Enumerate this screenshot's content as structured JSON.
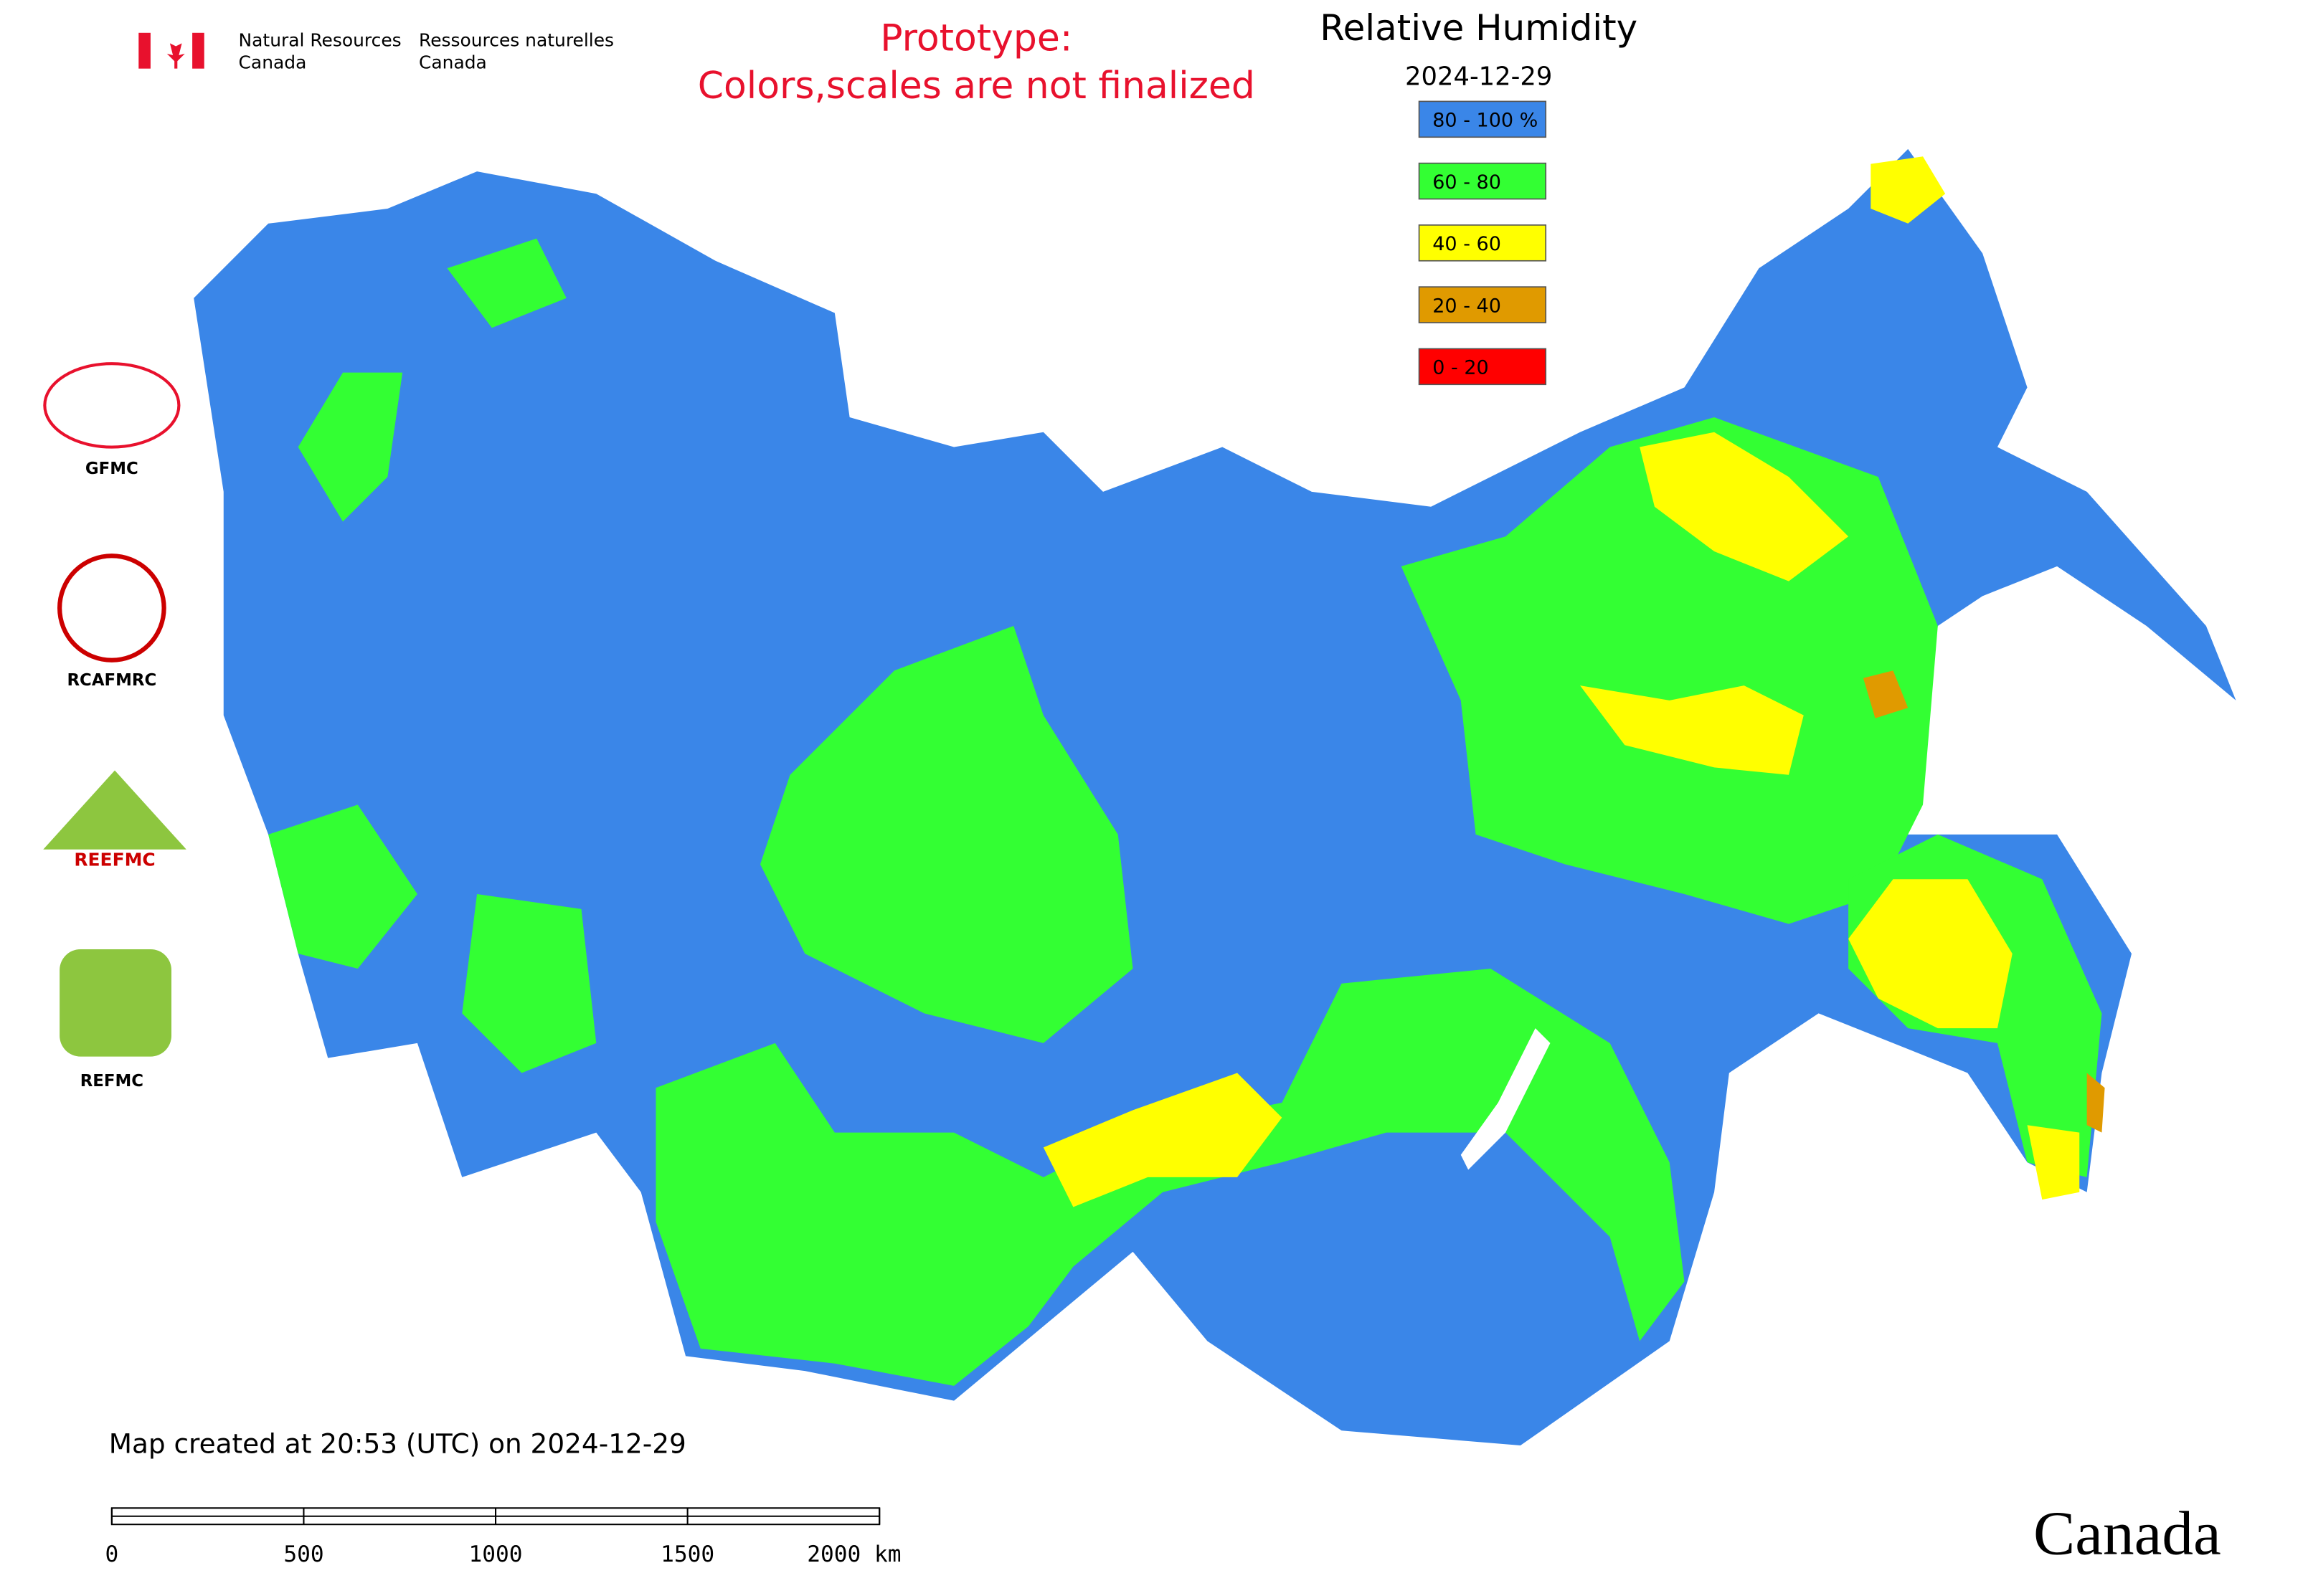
{
  "header": {
    "agency_en": [
      "Natural Resources",
      "Canada"
    ],
    "agency_fr": [
      "Ressources naturelles",
      "Canada"
    ],
    "notice": [
      "Prototype:",
      "Colors,scales are not finalized"
    ]
  },
  "legend": {
    "title": "Relative Humidity",
    "date": "2024-12-29",
    "items": [
      {
        "label": "80 - 100 %",
        "color": "#3a86e8"
      },
      {
        "label": "60 - 80",
        "color": "#33ff33"
      },
      {
        "label": "40 - 60",
        "color": "#ffff00"
      },
      {
        "label": "20 - 40",
        "color": "#e09a00"
      },
      {
        "label": "0 - 20",
        "color": "#ff0000"
      }
    ]
  },
  "logos": [
    "GFMC",
    "RCAFMRC",
    "REEFMC",
    "REFMC"
  ],
  "footer": {
    "created": "Map created at 20:53 (UTC) on 2024-12-29",
    "scale_bar": {
      "ticks": [
        0,
        500,
        1000,
        1500,
        {
          "value": 2000,
          "label": "2000 km"
        }
      ]
    },
    "wordmark": "Canada"
  }
}
